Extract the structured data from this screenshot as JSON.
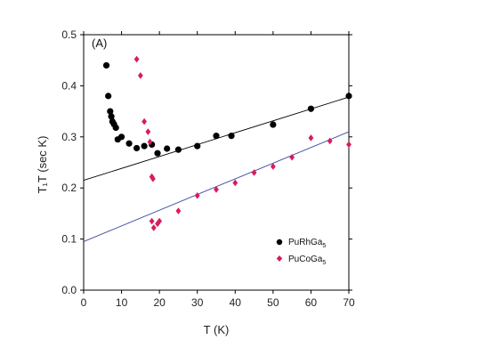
{
  "chart_data": {
    "type": "scatter",
    "panel_label": "(A)",
    "xlabel": "T (K)",
    "ylabel": "T₁T (sec K)",
    "xlim": [
      0,
      70
    ],
    "ylim": [
      0.0,
      0.5
    ],
    "xticks": [
      "0",
      "10",
      "20",
      "30",
      "40",
      "50",
      "60",
      "70"
    ],
    "yticks": [
      "0.0",
      "0.1",
      "0.2",
      "0.3",
      "0.4",
      "0.5"
    ],
    "grid": false,
    "legend_position": "bottom-right",
    "series": [
      {
        "name": "PuRhGa5",
        "name_base": "PuRhGa",
        "name_sub": "5",
        "marker": "circle",
        "color": "#000000",
        "points": [
          [
            6.0,
            0.44
          ],
          [
            6.5,
            0.38
          ],
          [
            7.0,
            0.35
          ],
          [
            7.3,
            0.34
          ],
          [
            7.6,
            0.33
          ],
          [
            8.0,
            0.325
          ],
          [
            8.5,
            0.318
          ],
          [
            9.0,
            0.295
          ],
          [
            10.0,
            0.3
          ],
          [
            12.0,
            0.287
          ],
          [
            14.0,
            0.278
          ],
          [
            16.0,
            0.282
          ],
          [
            18.0,
            0.285
          ],
          [
            19.5,
            0.268
          ],
          [
            22.0,
            0.277
          ],
          [
            25.0,
            0.275
          ],
          [
            30.0,
            0.282
          ],
          [
            35.0,
            0.302
          ],
          [
            39.0,
            0.302
          ],
          [
            50.0,
            0.324
          ],
          [
            60.0,
            0.355
          ],
          [
            70.0,
            0.38
          ]
        ],
        "fit": {
          "color": "#000000",
          "points": [
            [
              0,
              0.215
            ],
            [
              70,
              0.378
            ]
          ]
        }
      },
      {
        "name": "PuCoGa5",
        "name_base": "PuCoGa",
        "name_sub": "5",
        "marker": "diamond",
        "color": "#d81b60",
        "points": [
          [
            14.0,
            0.452
          ],
          [
            15.0,
            0.42
          ],
          [
            16.0,
            0.33
          ],
          [
            17.0,
            0.31
          ],
          [
            17.5,
            0.29
          ],
          [
            18.0,
            0.222
          ],
          [
            18.3,
            0.218
          ],
          [
            18.0,
            0.135
          ],
          [
            18.5,
            0.122
          ],
          [
            19.5,
            0.13
          ],
          [
            20.0,
            0.135
          ],
          [
            25.0,
            0.155
          ],
          [
            30.0,
            0.185
          ],
          [
            35.0,
            0.197
          ],
          [
            40.0,
            0.21
          ],
          [
            45.0,
            0.23
          ],
          [
            50.0,
            0.242
          ],
          [
            55.0,
            0.26
          ],
          [
            60.0,
            0.298
          ],
          [
            65.0,
            0.292
          ],
          [
            70.0,
            0.285
          ]
        ],
        "fit": {
          "color": "#3b4aa0",
          "points": [
            [
              0,
              0.095
            ],
            [
              70,
              0.31
            ]
          ]
        }
      }
    ]
  }
}
